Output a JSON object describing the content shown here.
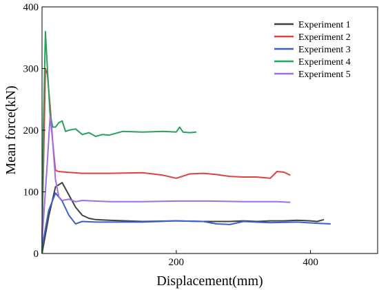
{
  "chart_data": {
    "type": "line",
    "title": "",
    "xlabel": "Displacement(mm)",
    "ylabel": "Mean force(kN)",
    "xlim": [
      0,
      500
    ],
    "ylim": [
      0,
      400
    ],
    "x_ticks": [
      200,
      400
    ],
    "y_ticks": [
      0,
      100,
      200,
      300,
      400
    ],
    "grid": false,
    "legend_position": "top-right",
    "series": [
      {
        "name": "Experiment 1",
        "color": "#404040",
        "points": [
          [
            0,
            0
          ],
          [
            10,
            60
          ],
          [
            20,
            108
          ],
          [
            30,
            115
          ],
          [
            40,
            95
          ],
          [
            50,
            75
          ],
          [
            60,
            62
          ],
          [
            70,
            57
          ],
          [
            80,
            55
          ],
          [
            100,
            54
          ],
          [
            150,
            52
          ],
          [
            200,
            53
          ],
          [
            240,
            52
          ],
          [
            260,
            52
          ],
          [
            280,
            52
          ],
          [
            300,
            53
          ],
          [
            320,
            52
          ],
          [
            340,
            53
          ],
          [
            360,
            53
          ],
          [
            380,
            54
          ],
          [
            400,
            53
          ],
          [
            410,
            52
          ],
          [
            420,
            55
          ]
        ]
      },
      {
        "name": "Experiment 2",
        "color": "#e04040",
        "points": [
          [
            0,
            20
          ],
          [
            5,
            300
          ],
          [
            8,
            290
          ],
          [
            12,
            240
          ],
          [
            16,
            180
          ],
          [
            20,
            135
          ],
          [
            25,
            133
          ],
          [
            35,
            132
          ],
          [
            60,
            130
          ],
          [
            100,
            130
          ],
          [
            150,
            131
          ],
          [
            180,
            127
          ],
          [
            200,
            122
          ],
          [
            220,
            129
          ],
          [
            240,
            130
          ],
          [
            260,
            128
          ],
          [
            280,
            125
          ],
          [
            300,
            124
          ],
          [
            320,
            124
          ],
          [
            340,
            122
          ],
          [
            350,
            133
          ],
          [
            360,
            132
          ],
          [
            370,
            127
          ]
        ]
      },
      {
        "name": "Experiment 3",
        "color": "#3a5fcd",
        "points": [
          [
            0,
            10
          ],
          [
            10,
            70
          ],
          [
            20,
            98
          ],
          [
            30,
            85
          ],
          [
            40,
            62
          ],
          [
            50,
            48
          ],
          [
            60,
            52
          ],
          [
            80,
            51
          ],
          [
            100,
            51
          ],
          [
            150,
            51
          ],
          [
            200,
            53
          ],
          [
            240,
            52
          ],
          [
            260,
            48
          ],
          [
            280,
            47
          ],
          [
            300,
            52
          ],
          [
            340,
            50
          ],
          [
            380,
            51
          ],
          [
            410,
            49
          ],
          [
            430,
            48
          ]
        ]
      },
      {
        "name": "Experiment 4",
        "color": "#28a060",
        "points": [
          [
            0,
            0
          ],
          [
            2,
            200
          ],
          [
            5,
            360
          ],
          [
            8,
            300
          ],
          [
            12,
            225
          ],
          [
            16,
            205
          ],
          [
            20,
            205
          ],
          [
            25,
            212
          ],
          [
            30,
            215
          ],
          [
            35,
            198
          ],
          [
            40,
            200
          ],
          [
            50,
            202
          ],
          [
            60,
            193
          ],
          [
            70,
            196
          ],
          [
            80,
            190
          ],
          [
            90,
            193
          ],
          [
            100,
            192
          ],
          [
            120,
            198
          ],
          [
            150,
            197
          ],
          [
            180,
            198
          ],
          [
            200,
            197
          ],
          [
            205,
            205
          ],
          [
            210,
            197
          ],
          [
            220,
            196
          ],
          [
            230,
            197
          ]
        ]
      },
      {
        "name": "Experiment 5",
        "color": "#a06ee0",
        "points": [
          [
            0,
            20
          ],
          [
            8,
            150
          ],
          [
            12,
            222
          ],
          [
            16,
            180
          ],
          [
            20,
            120
          ],
          [
            25,
            92
          ],
          [
            30,
            86
          ],
          [
            40,
            88
          ],
          [
            50,
            84
          ],
          [
            60,
            86
          ],
          [
            80,
            85
          ],
          [
            100,
            84
          ],
          [
            150,
            84
          ],
          [
            200,
            85
          ],
          [
            250,
            85
          ],
          [
            300,
            84
          ],
          [
            350,
            84
          ],
          [
            370,
            83
          ]
        ]
      }
    ]
  }
}
